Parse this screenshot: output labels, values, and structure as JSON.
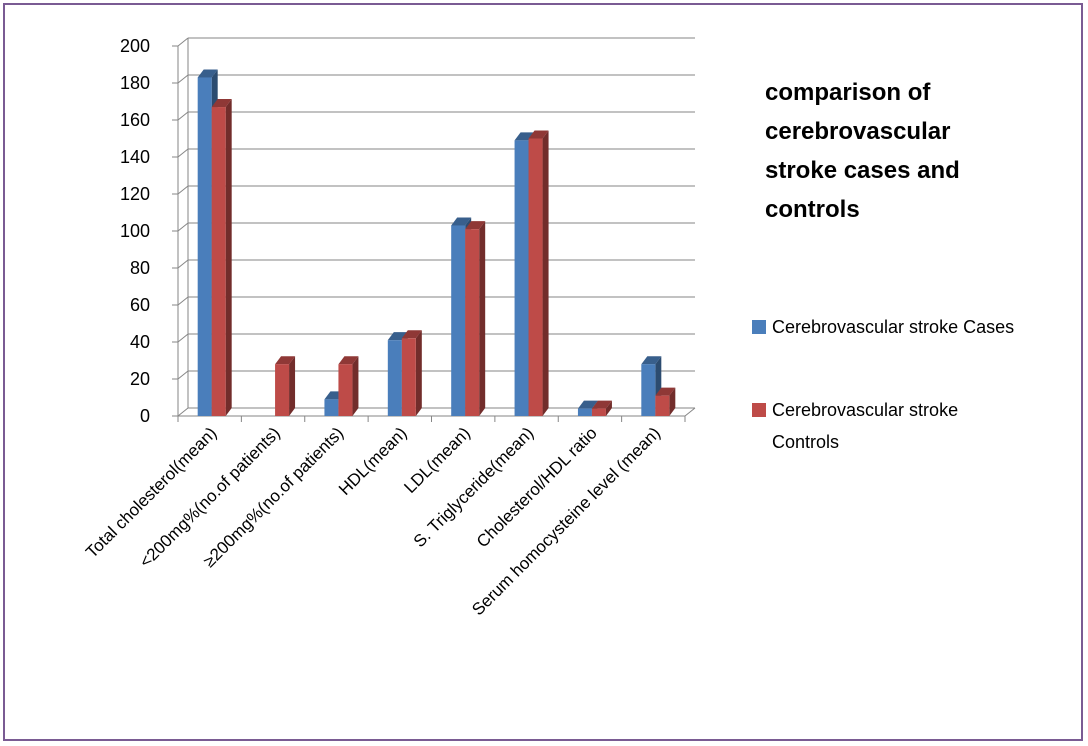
{
  "chart_data": {
    "type": "bar",
    "title": "comparison of cerebrovascular stroke cases and controls",
    "title_lines": [
      "comparison of",
      "cerebrovascular",
      "stroke cases and",
      "controls"
    ],
    "categories": [
      "Total cholesterol(mean)",
      "<200mg%(no.of  patients)",
      "≥200mg%(no.of  patients)",
      "HDL(mean)",
      "LDL(mean)",
      "S. Triglyceride(mean)",
      "Cholesterol/HDL ratio",
      "Serum homocysteine level (mean)"
    ],
    "series": [
      {
        "name": "Cerebrovascular stroke Cases",
        "legend_lines": [
          "Cerebrovascular stroke Cases"
        ],
        "color": "#4a7ebb",
        "values": [
          183,
          null,
          9,
          41,
          103,
          149,
          4,
          28
        ]
      },
      {
        "name": "Cerebrovascular stroke Controls",
        "legend_lines": [
          "Cerebrovascular stroke",
          "Controls"
        ],
        "color": "#be4b48",
        "values": [
          167,
          28,
          28,
          42,
          101,
          150,
          4,
          11
        ]
      }
    ],
    "ylim": [
      0,
      200
    ],
    "yticks": [
      0,
      20,
      40,
      60,
      80,
      100,
      120,
      140,
      160,
      180,
      200
    ],
    "grid": true,
    "legend_position": "right",
    "style": "3d-column"
  }
}
